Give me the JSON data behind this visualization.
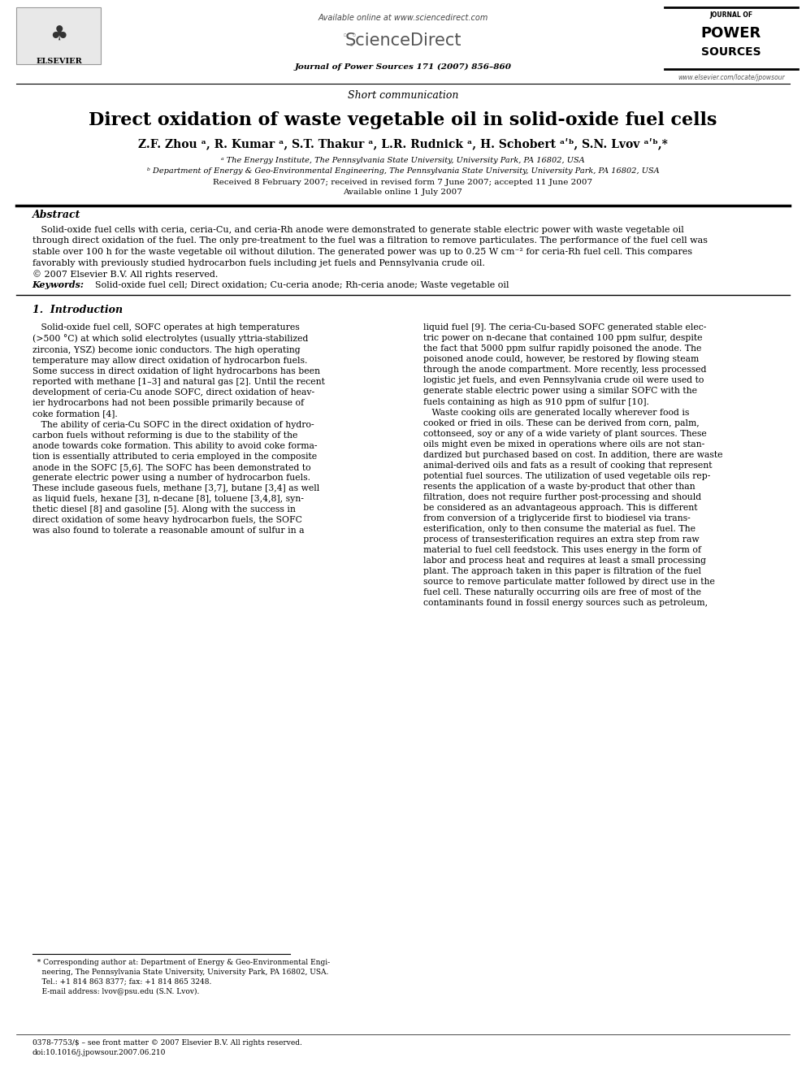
{
  "bg_color": "#ffffff",
  "elsevier_text": "ELSEVIER",
  "available_online": "Available online at www.sciencedirect.com",
  "sciencedirect": "ScienceDirect",
  "journal_name": "Journal of Power Sources 171 (2007) 856–860",
  "elsevier_url": "www.elsevier.com/locate/jpowsour",
  "short_comm": "Short communication",
  "title": "Direct oxidation of waste vegetable oil in solid-oxide fuel cells",
  "authors": "Z.F. Zhou ᵃ, R. Kumar ᵃ, S.T. Thakur ᵃ, L.R. Rudnick ᵃ, H. Schobert ᵃʹᵇ, S.N. Lvov ᵃʹᵇ,*",
  "affil_a": "ᵃ The Energy Institute, The Pennsylvania State University, University Park, PA 16802, USA",
  "affil_b": "ᵇ Department of Energy & Geo-Environmental Engineering, The Pennsylvania State University, University Park, PA 16802, USA",
  "received": "Received 8 February 2007; received in revised form 7 June 2007; accepted 11 June 2007",
  "available": "Available online 1 July 2007",
  "abstract_title": "Abstract",
  "keywords_label": "Keywords:",
  "keywords": "Solid-oxide fuel cell; Direct oxidation; Cu-ceria anode; Rh-ceria anode; Waste vegetable oil",
  "section1_title": "1.  Introduction",
  "footnote_text": "  * Corresponding author at: Department of Energy & Geo-Environmental Engi-\n    neering, The Pennsylvania State University, University Park, PA 16802, USA.\n    Tel.: +1 814 863 8377; fax: +1 814 865 3248.\n    E-mail address: lvov@psu.edu (S.N. Lvov).",
  "bottom_text": "0378-7753/$ – see front matter © 2007 Elsevier B.V. All rights reserved.\ndoi:10.1016/j.jpowsour.2007.06.210"
}
